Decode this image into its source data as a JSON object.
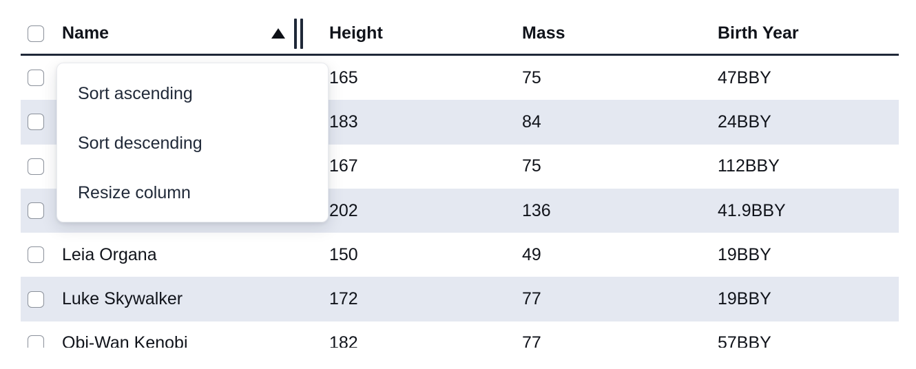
{
  "table": {
    "header": {
      "select_all_checked": false,
      "columns": {
        "name": "Name",
        "height": "Height",
        "mass": "Mass",
        "birth_year": "Birth Year"
      },
      "name_sort_indicator": "ascending",
      "name_resize_handle": "double-bar"
    },
    "rows": [
      {
        "name": "",
        "height": "165",
        "mass": "75",
        "birth_year": "47BBY",
        "checked": false
      },
      {
        "name": "",
        "height": "183",
        "mass": "84",
        "birth_year": "24BBY",
        "checked": false
      },
      {
        "name": "",
        "height": "167",
        "mass": "75",
        "birth_year": "112BBY",
        "checked": false
      },
      {
        "name": "",
        "height": "202",
        "mass": "136",
        "birth_year": "41.9BBY",
        "checked": false
      },
      {
        "name": "Leia Organa",
        "height": "150",
        "mass": "49",
        "birth_year": "19BBY",
        "checked": false
      },
      {
        "name": "Luke Skywalker",
        "height": "172",
        "mass": "77",
        "birth_year": "19BBY",
        "checked": false
      },
      {
        "name": "Obi-Wan Kenobi",
        "height": "182",
        "mass": "77",
        "birth_year": "57BBY",
        "checked": false
      }
    ]
  },
  "context_menu": {
    "items": [
      "Sort ascending",
      "Sort descending",
      "Resize column"
    ]
  },
  "colors": {
    "row_stripe": "#e4e8f1",
    "header_border": "#1f2838",
    "cell_text": "#10131a",
    "menu_text": "#212a39",
    "checkbox_border": "#8a909a"
  }
}
